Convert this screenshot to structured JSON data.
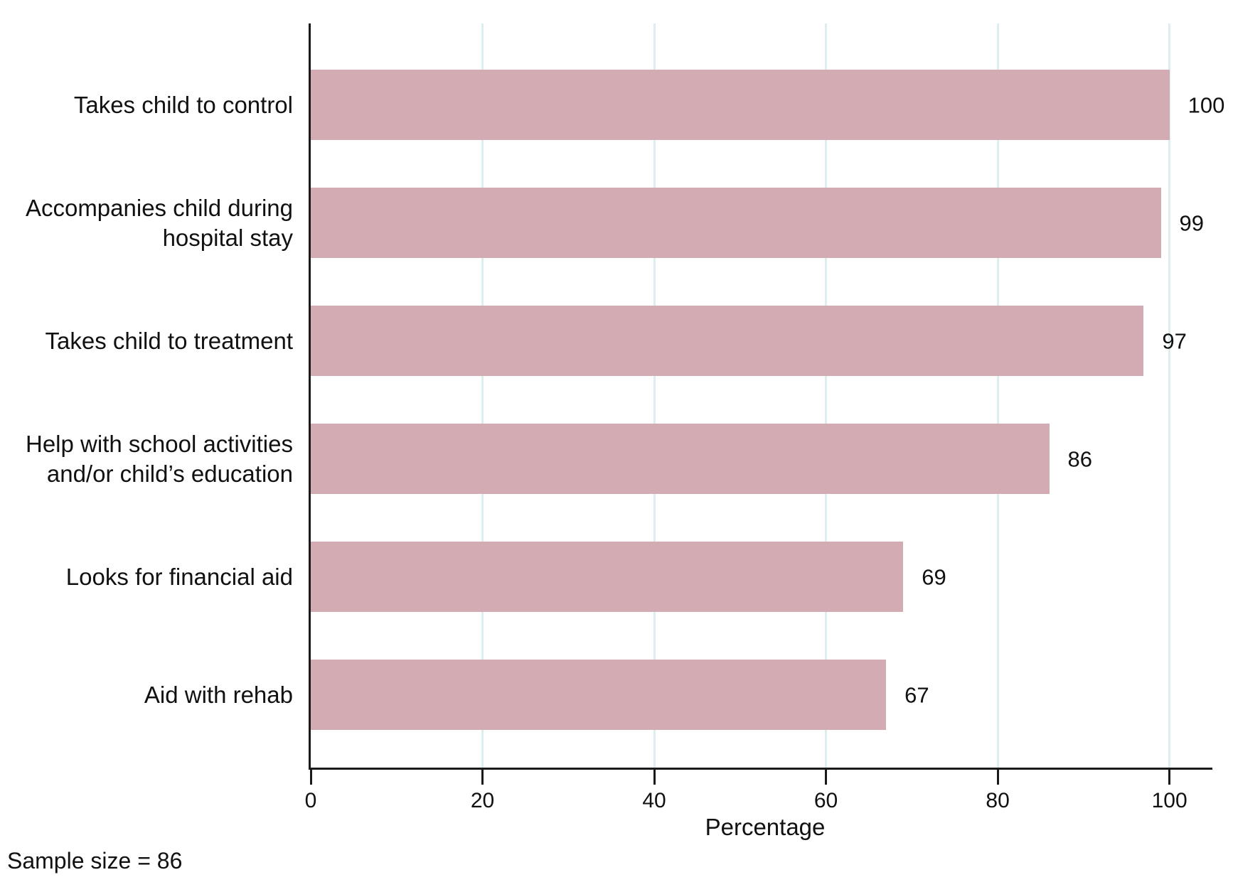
{
  "chart_data": {
    "type": "bar",
    "orientation": "horizontal",
    "title": "",
    "categories": [
      "Takes child to control",
      "Accompanies child during\nhospital stay",
      "Takes child to treatment",
      "Help with school activities\nand/or child’s education",
      "Looks for financial aid",
      "Aid with rehab"
    ],
    "values": [
      100,
      99,
      97,
      86,
      69,
      67
    ],
    "value_labels": [
      "100",
      "99",
      "97",
      "86",
      "69",
      "67"
    ],
    "xlabel": "Percentage",
    "x_ticks": [
      0,
      20,
      40,
      60,
      80,
      100
    ],
    "x_tick_labels": [
      "0",
      "20",
      "40",
      "60",
      "80",
      "100"
    ],
    "xlim": [
      0,
      105
    ],
    "grid": true,
    "legend": "none",
    "note": "Sample size = 86",
    "colors": {
      "bar": "#d3abb2",
      "gridline": "#ddeef0",
      "axis": "#1a1a1a",
      "background": "#ffffff",
      "text": "#111111"
    }
  }
}
